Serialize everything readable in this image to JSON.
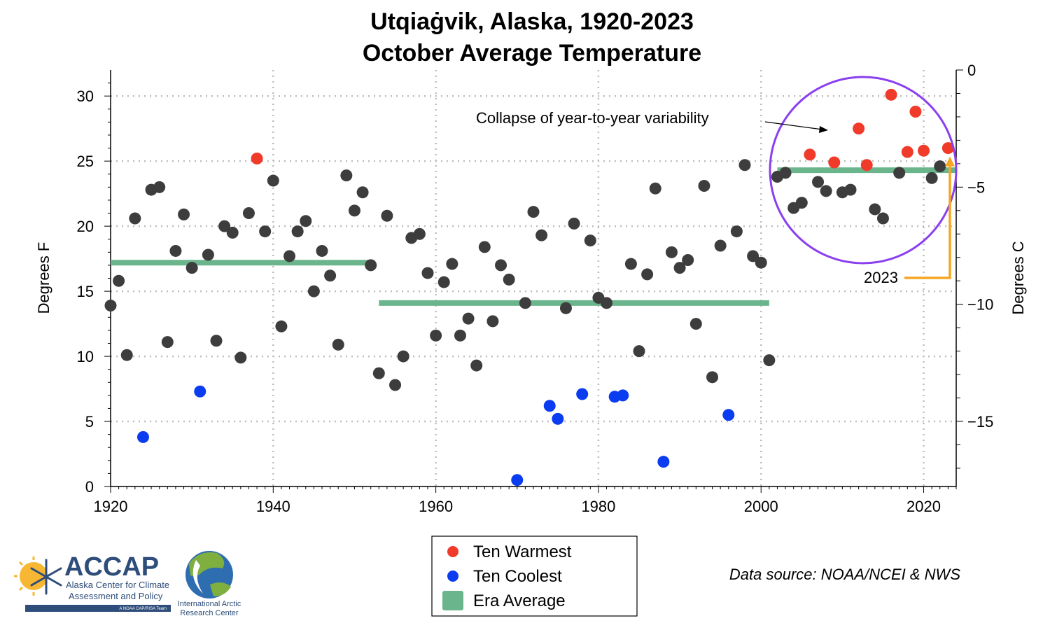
{
  "chart_data": {
    "type": "scatter",
    "title": [
      "Utqiaġvik, Alaska, 1920-2023",
      "October Average Temperature"
    ],
    "ylabel": "Degrees F",
    "ylabel_right": "Degrees C",
    "xlim": [
      1920,
      2024
    ],
    "ylim": [
      0,
      32
    ],
    "ylim_right": [
      -17.78,
      0
    ],
    "x_ticks": [
      1920,
      1940,
      1960,
      1980,
      2000,
      2020
    ],
    "y_ticks": [
      0,
      5,
      10,
      15,
      20,
      25,
      30
    ],
    "y_ticks_right": [
      0,
      -5,
      -10,
      -15
    ],
    "grid": true,
    "series": [
      {
        "name": "Ten Warmest",
        "color": "#f03a2a",
        "points": [
          [
            1938,
            25.2
          ],
          [
            2006,
            25.5
          ],
          [
            2009,
            24.9
          ],
          [
            2012,
            27.5
          ],
          [
            2016,
            30.1
          ],
          [
            2018,
            25.7
          ],
          [
            2019,
            28.8
          ],
          [
            2020,
            25.8
          ],
          [
            2023,
            26.0
          ],
          [
            2013,
            24.7
          ]
        ]
      },
      {
        "name": "Ten Coolest",
        "color": "#0a3cf0",
        "points": [
          [
            1924,
            3.8
          ],
          [
            1931,
            7.3
          ],
          [
            1970,
            0.5
          ],
          [
            1974,
            6.2
          ],
          [
            1975,
            5.2
          ],
          [
            1978,
            7.1
          ],
          [
            1982,
            6.9
          ],
          [
            1983,
            7.0
          ],
          [
            1988,
            1.9
          ],
          [
            1996,
            5.5
          ]
        ]
      },
      {
        "name": "Other years",
        "color": "#3d3d3d",
        "points": [
          [
            1920,
            13.9
          ],
          [
            1921,
            15.8
          ],
          [
            1922,
            10.1
          ],
          [
            1923,
            20.6
          ],
          [
            1925,
            22.8
          ],
          [
            1926,
            23.0
          ],
          [
            1927,
            11.1
          ],
          [
            1928,
            18.1
          ],
          [
            1929,
            20.9
          ],
          [
            1930,
            16.8
          ],
          [
            1932,
            17.8
          ],
          [
            1933,
            11.2
          ],
          [
            1934,
            20.0
          ],
          [
            1935,
            19.5
          ],
          [
            1936,
            9.9
          ],
          [
            1937,
            21.0
          ],
          [
            1939,
            19.6
          ],
          [
            1940,
            23.5
          ],
          [
            1941,
            12.3
          ],
          [
            1942,
            17.7
          ],
          [
            1943,
            19.6
          ],
          [
            1944,
            20.4
          ],
          [
            1945,
            15.0
          ],
          [
            1946,
            18.1
          ],
          [
            1947,
            16.2
          ],
          [
            1948,
            10.9
          ],
          [
            1949,
            23.9
          ],
          [
            1950,
            21.2
          ],
          [
            1951,
            22.6
          ],
          [
            1952,
            17.0
          ],
          [
            1953,
            8.7
          ],
          [
            1954,
            20.8
          ],
          [
            1955,
            7.8
          ],
          [
            1956,
            10.0
          ],
          [
            1957,
            19.1
          ],
          [
            1958,
            19.4
          ],
          [
            1959,
            16.4
          ],
          [
            1960,
            11.6
          ],
          [
            1961,
            15.7
          ],
          [
            1962,
            17.1
          ],
          [
            1963,
            11.6
          ],
          [
            1964,
            12.9
          ],
          [
            1965,
            9.3
          ],
          [
            1966,
            18.4
          ],
          [
            1967,
            12.7
          ],
          [
            1968,
            17.0
          ],
          [
            1969,
            15.9
          ],
          [
            1971,
            14.1
          ],
          [
            1972,
            21.1
          ],
          [
            1973,
            19.3
          ],
          [
            1976,
            13.7
          ],
          [
            1977,
            20.2
          ],
          [
            1979,
            18.9
          ],
          [
            1980,
            14.5
          ],
          [
            1981,
            14.1
          ],
          [
            1984,
            17.1
          ],
          [
            1985,
            10.4
          ],
          [
            1986,
            16.3
          ],
          [
            1987,
            22.9
          ],
          [
            1989,
            18.0
          ],
          [
            1990,
            16.8
          ],
          [
            1991,
            17.4
          ],
          [
            1992,
            12.5
          ],
          [
            1993,
            23.1
          ],
          [
            1994,
            8.4
          ],
          [
            1995,
            18.5
          ],
          [
            1997,
            19.6
          ],
          [
            1998,
            24.7
          ],
          [
            1999,
            17.7
          ],
          [
            2000,
            17.2
          ],
          [
            2001,
            9.7
          ],
          [
            2002,
            23.8
          ],
          [
            2003,
            24.1
          ],
          [
            2004,
            21.4
          ],
          [
            2005,
            21.8
          ],
          [
            2007,
            23.4
          ],
          [
            2008,
            22.7
          ],
          [
            2010,
            22.6
          ],
          [
            2011,
            22.8
          ],
          [
            2014,
            21.3
          ],
          [
            2015,
            20.6
          ],
          [
            2017,
            24.1
          ],
          [
            2021,
            23.7
          ],
          [
            2022,
            24.6
          ]
        ]
      }
    ],
    "era_averages": {
      "name": "Era Average",
      "color": "#6bb58c",
      "segments": [
        {
          "x": [
            1920,
            1952
          ],
          "y": 17.2
        },
        {
          "x": [
            1953,
            2001
          ],
          "y": 14.1
        },
        {
          "x": [
            2002,
            2024
          ],
          "y": 24.3
        }
      ]
    },
    "annotations": {
      "variability_text": "Collapse of year-to-year variability",
      "highlight_circle_color": "#8a3ff0",
      "year_label": "2023",
      "year_arrow_color": "#f5a623"
    },
    "legend": {
      "placement": "bottom-center",
      "entries": [
        {
          "label": "Ten Warmest",
          "color": "#f03a2a"
        },
        {
          "label": "Ten Coolest",
          "color": "#0a3cf0"
        },
        {
          "label": "Era Average",
          "color": "#6bb58c"
        }
      ]
    }
  },
  "footer": {
    "source": "Data source: NOAA/NCEI & NWS",
    "accap_logo": "ACCAP",
    "accap_line1": "Alaska Center for Climate",
    "accap_line2": "Assessment and Policy",
    "accap_line3": "A NOAA CAP/RISA Team",
    "iarc_line1": "International Arctic",
    "iarc_line2": "Research Center"
  }
}
